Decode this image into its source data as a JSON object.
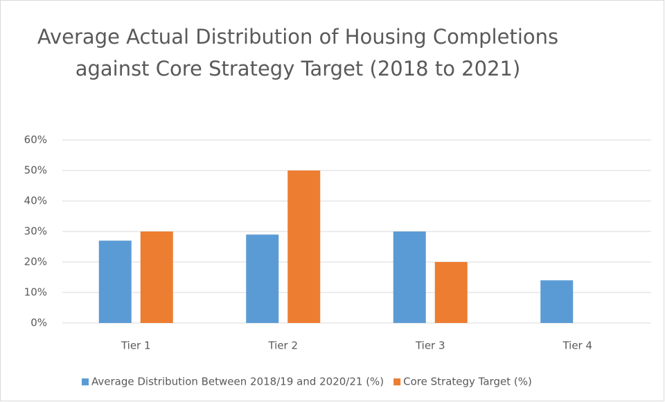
{
  "chart_data": {
    "type": "bar",
    "title": "Average Actual Distribution of Housing Completions against Core Strategy Target (2018 to 2021)",
    "categories": [
      "Tier 1",
      "Tier 2",
      "Tier 3",
      "Tier 4"
    ],
    "series": [
      {
        "name": "Average Distribution Between 2018/19 and 2020/21 (%)",
        "color": "#5b9bd5",
        "values": [
          27,
          29,
          30,
          14
        ]
      },
      {
        "name": "Core Strategy Target (%)",
        "color": "#ed7d31",
        "values": [
          30,
          50,
          20,
          0
        ]
      }
    ],
    "ylim": [
      0,
      60
    ],
    "yticks": [
      {
        "value": 0,
        "label": "0%"
      },
      {
        "value": 10,
        "label": "10%"
      },
      {
        "value": 20,
        "label": "20%"
      },
      {
        "value": 30,
        "label": "30%"
      },
      {
        "value": 40,
        "label": "40%"
      },
      {
        "value": 50,
        "label": "50%"
      },
      {
        "value": 60,
        "label": "60%"
      }
    ],
    "grid": true,
    "legend": "bottom"
  }
}
